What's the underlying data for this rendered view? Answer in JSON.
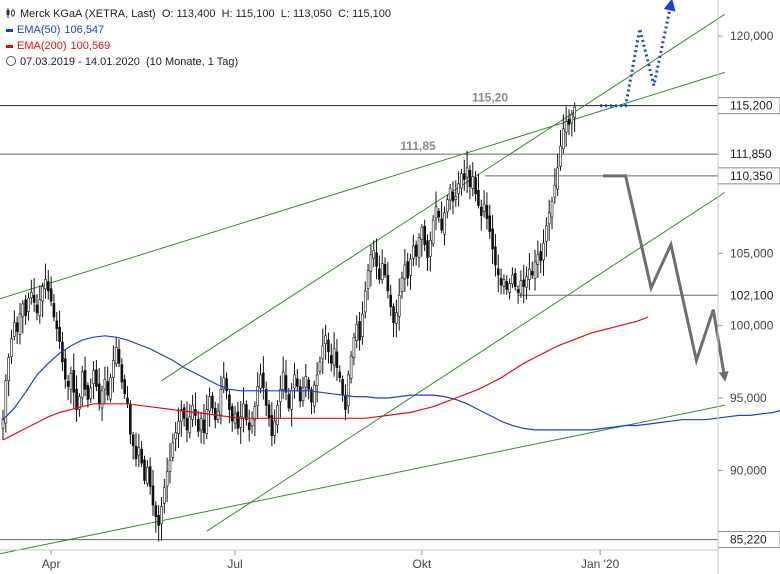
{
  "legend": {
    "title": "Merck KGaA (XETRA, Last)",
    "ohlc": {
      "o": "O: 113,400",
      "h": "H: 115,100",
      "l": "L: 113,050",
      "c": "C: 115,100"
    },
    "ema50_label": "EMA(50)",
    "ema50_value": "106,547",
    "ema50_color": "#1f3fd8",
    "ema200_label": "EMA(200)",
    "ema200_value": "100,569",
    "ema200_color": "#e01010",
    "range": "07.03.2019 - 14.01.2020",
    "period": "(10 Monate, 1 Tag)"
  },
  "chart_data": {
    "type": "candlestick",
    "ylim": [
      84.5,
      122.5
    ],
    "y_ticks": [
      {
        "v": 90,
        "label": "90,000"
      },
      {
        "v": 95,
        "label": "95,000"
      },
      {
        "v": 100,
        "label": "100,000"
      },
      {
        "v": 105,
        "label": "105,000"
      },
      {
        "v": 120,
        "label": "120,000"
      }
    ],
    "x_ticks": [
      {
        "t": 17,
        "label": "Apr"
      },
      {
        "t": 82,
        "label": "Jul"
      },
      {
        "t": 148,
        "label": "Okt"
      },
      {
        "t": 211,
        "label": "Jan '20"
      }
    ],
    "price_levels": [
      {
        "v": 115.2,
        "label": "115,200",
        "annotation": "115,20",
        "boxed": true
      },
      {
        "v": 111.85,
        "label": "111,850",
        "annotation": "111,85",
        "boxed": false
      },
      {
        "v": 110.35,
        "label": "110,350",
        "annotation": "",
        "boxed": true
      },
      {
        "v": 102.1,
        "label": "102,100",
        "annotation": "",
        "boxed": false
      },
      {
        "v": 85.22,
        "label": "85,220",
        "annotation": "",
        "boxed": true
      }
    ],
    "closes": [
      93.5,
      96.2,
      97.8,
      99.1,
      100.2,
      99.6,
      100.8,
      101.5,
      100.7,
      101.9,
      102.3,
      101.6,
      100.9,
      101.8,
      102.7,
      103.2,
      102.4,
      101.7,
      100.6,
      99.8,
      98.9,
      97.5,
      96.3,
      95.8,
      96.7,
      95.4,
      94.2,
      95.1,
      96.8,
      95.6,
      94.9,
      95.7,
      96.9,
      95.8,
      94.6,
      95.5,
      96.3,
      95.2,
      96.4,
      97.6,
      98.5,
      97.4,
      96.1,
      95.3,
      94.6,
      92.5,
      91.7,
      90.8,
      91.6,
      90.5,
      89.3,
      90.2,
      88.9,
      87.6,
      86.8,
      86.2,
      87.5,
      88.8,
      89.9,
      90.7,
      91.9,
      92.6,
      93.4,
      94.2,
      93.6,
      92.8,
      93.7,
      94.5,
      93.8,
      92.7,
      93.6,
      92.6,
      94.2,
      95.1,
      94.3,
      93.5,
      94.1,
      95.6,
      96.4,
      95.5,
      94.2,
      93.4,
      93.9,
      92.9,
      93.7,
      94.6,
      93.5,
      92.8,
      93.6,
      94.4,
      95.8,
      96.6,
      95.7,
      94.5,
      93.6,
      92.4,
      93.4,
      94.5,
      95.6,
      96.8,
      95.4,
      94.3,
      95.5,
      96.6,
      95.8,
      94.8,
      95.7,
      96.5,
      95.6,
      94.7,
      95.9,
      96.6,
      97.5,
      98.6,
      99.3,
      98.2,
      97.4,
      98.4,
      97.1,
      96.4,
      95.2,
      94.2,
      96.6,
      97.9,
      99.2,
      100.1,
      99.0,
      100.8,
      102.4,
      103.8,
      104.9,
      105.2,
      104.1,
      103.2,
      104.3,
      103.5,
      102.4,
      101.3,
      100.2,
      100.9,
      102.1,
      103.3,
      104.2,
      103.3,
      104.6,
      105.5,
      104.8,
      106.1,
      106.8,
      105.6,
      104.7,
      105.9,
      107.3,
      108.2,
      107.5,
      106.6,
      107.8,
      108.7,
      109.5,
      108.6,
      108.9,
      109.8,
      110.5,
      110.1,
      110.9,
      109.6,
      110.3,
      109.1,
      108.3,
      107.6,
      108.4,
      107.4,
      106.5,
      105.3,
      104.2,
      103.5,
      102.8,
      103.2,
      102.5,
      102.9,
      103.5,
      102.7,
      102.3,
      103.1,
      102.7,
      103.4,
      103.9,
      103.5,
      104.4,
      104.9,
      104.5,
      105.7,
      106.9,
      107.8,
      108.6,
      109.7,
      110.9,
      112.4,
      113.6,
      114.1,
      113.9,
      114.6,
      115.1
    ],
    "ema50": [
      93.5,
      94.3,
      95.4,
      96.6,
      97.4,
      98.1,
      98.6,
      99.0,
      99.2,
      99.3,
      99.2,
      99.0,
      98.7,
      98.4,
      98.0,
      97.6,
      97.1,
      96.7,
      96.3,
      95.9,
      95.6,
      95.5,
      95.5,
      95.5,
      95.5,
      95.5,
      95.5,
      95.5,
      95.4,
      95.3,
      95.2,
      95.1,
      95.1,
      95.0,
      95.0,
      95.1,
      95.2,
      95.2,
      95.2,
      95.1,
      94.9,
      94.6,
      94.2,
      93.8,
      93.4,
      93.1,
      92.9,
      92.8,
      92.8,
      92.8,
      92.8,
      92.8,
      92.8,
      92.9,
      93.0,
      93.1,
      93.1,
      93.2,
      93.3,
      93.4,
      93.5,
      93.5,
      93.5,
      93.6,
      93.7,
      93.8,
      93.8,
      93.9,
      94.0,
      94.2,
      94.3,
      94.4,
      94.5,
      94.6,
      94.6,
      94.7,
      94.8,
      94.8,
      94.9,
      95.0,
      95.2,
      95.4,
      95.6,
      95.8,
      96.1,
      96.6,
      97.3,
      98.0,
      98.6,
      99.2,
      99.8,
      100.3,
      100.8,
      101.4,
      101.9,
      102.4,
      102.9,
      103.3,
      103.7,
      104.1,
      104.5,
      104.8,
      105.1,
      105.4,
      105.6,
      105.7,
      105.7,
      105.8,
      105.9,
      106.0,
      106.2,
      106.5,
      106.9,
      107.4
    ],
    "ema50_start": 0,
    "ema200": [
      92.1,
      92.5,
      92.9,
      93.3,
      93.7,
      94.0,
      94.2,
      94.4,
      94.6,
      94.6,
      94.6,
      94.6,
      94.5,
      94.4,
      94.3,
      94.2,
      94.1,
      94.0,
      93.9,
      93.8,
      93.7,
      93.6,
      93.6,
      93.6,
      93.6,
      93.6,
      93.6,
      93.6,
      93.6,
      93.6,
      93.6,
      93.6,
      93.6,
      93.7,
      93.8,
      93.9,
      94.0,
      94.2,
      94.4,
      94.7,
      95.0,
      95.3,
      95.6,
      96.0,
      96.4,
      96.9,
      97.4,
      97.8,
      98.2,
      98.6,
      98.9,
      99.2,
      99.5,
      99.7,
      99.9,
      100.1,
      100.3,
      100.6
    ],
    "ema200_start": 0,
    "ema_step": 4,
    "channel_lines": [
      {
        "t1": -2,
        "v1": 84.2,
        "t2": 255,
        "v2": 94.5
      },
      {
        "t1": 72,
        "v1": 85.8,
        "t2": 255,
        "v2": 109.2
      },
      {
        "t1": -2,
        "v1": 101.8,
        "t2": 255,
        "v2": 117.5
      },
      {
        "t1": 56,
        "v1": 96.2,
        "t2": 255,
        "v2": 121.5
      }
    ],
    "bull_path": [
      [
        211,
        115.2
      ],
      [
        220,
        115.2
      ],
      [
        225,
        120.5
      ],
      [
        230,
        116.6
      ],
      [
        236,
        122.2
      ]
    ],
    "bear_path": [
      [
        212,
        110.35
      ],
      [
        220,
        110.35
      ],
      [
        229,
        102.6
      ],
      [
        236,
        105.6
      ],
      [
        245,
        97.6
      ],
      [
        251,
        101.1
      ],
      [
        255,
        96.4
      ]
    ]
  }
}
